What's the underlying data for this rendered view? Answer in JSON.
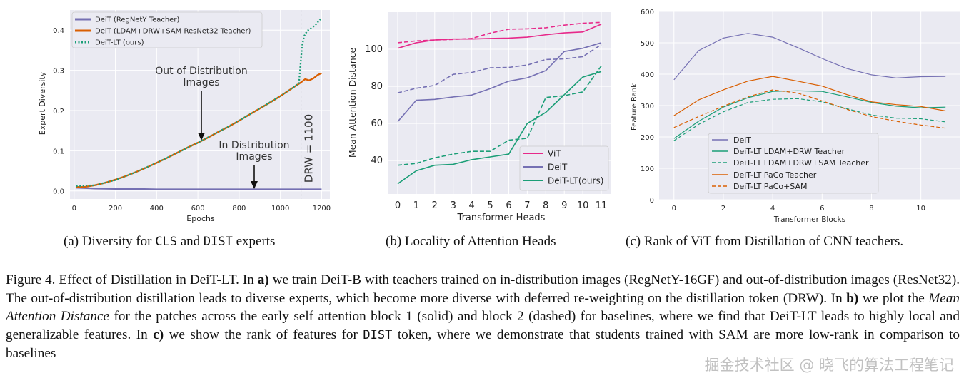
{
  "figure": {
    "subcaption_a": {
      "prefix": "(a) Diversity for ",
      "m1": "CLS",
      "mid": " and ",
      "m2": "DIST",
      "suffix": " experts"
    },
    "subcaption_b": "(b) Locality of Attention Heads",
    "subcaption_c": "(c) Rank of ViT from Distillation of CNN teachers.",
    "caption": {
      "p1": "Figure 4. Effect of Distillation in DeiT-LT. In ",
      "b1": "a)",
      "p2": " we train DeiT-B with teachers trained on in-distribution images (RegNetY-16GF) and out-of-distribution images (ResNet32). The out-of-distribution distillation leads to diverse experts, which become more diverse with deferred re-weighting on the distillation token (DRW). In ",
      "b2": "b)",
      "p3": " we plot the ",
      "i1": "Mean Attention Distance",
      "p4": " for the patches across the early self attention block 1 (solid) and block 2 (dashed) for baselines, where we find that DeiT-LT leads to highly local and generalizable features. In ",
      "b3": "c)",
      "p5": " we show the rank of features for ",
      "m1": "DIST",
      "p6": " token, where we demonstrate that students trained with SAM are more low-rank in comparison to baselines"
    },
    "watermark": "掘金技术社区 @ 晓飞的算法工程笔记"
  },
  "colors": {
    "purple": "#7570b3",
    "orange": "#d95f02",
    "teal": "#1b9e77",
    "pink": "#e7298a",
    "bg": "#eaeaf2"
  },
  "chart_data": [
    {
      "type": "line",
      "id": "a",
      "xlabel": "Epochs",
      "ylabel": "Expert Diversity",
      "xlim": [
        -20,
        1240
      ],
      "ylim": [
        -0.02,
        0.45
      ],
      "xticks": [
        0,
        200,
        400,
        600,
        800,
        1000,
        1200
      ],
      "yticks": [
        0.0,
        0.1,
        0.2,
        0.3,
        0.4
      ],
      "ytick_labels": [
        "0.0",
        "0.1",
        "0.2",
        "0.3",
        "0.4"
      ],
      "legend_position": "top-left",
      "series": [
        {
          "name": "DeiT (RegNetY Teacher)",
          "color": "#7570b3",
          "style": "solid",
          "x": [
            10,
            100,
            200,
            300,
            400,
            500,
            600,
            700,
            800,
            900,
            1000,
            1100,
            1200
          ],
          "y": [
            0.008,
            0.006,
            0.005,
            0.005,
            0.004,
            0.004,
            0.004,
            0.004,
            0.004,
            0.004,
            0.004,
            0.004,
            0.004
          ]
        },
        {
          "name": "DeiT (LDAM+DRW+SAM ResNet32 Teacher)",
          "color": "#d95f02",
          "style": "solid",
          "x": [
            10,
            50,
            100,
            150,
            200,
            250,
            300,
            350,
            400,
            450,
            500,
            550,
            600,
            650,
            700,
            750,
            800,
            850,
            900,
            950,
            1000,
            1050,
            1100,
            1120,
            1140,
            1160,
            1180,
            1200
          ],
          "y": [
            0.01,
            0.01,
            0.014,
            0.02,
            0.028,
            0.037,
            0.047,
            0.058,
            0.07,
            0.082,
            0.095,
            0.108,
            0.12,
            0.133,
            0.147,
            0.16,
            0.175,
            0.19,
            0.205,
            0.22,
            0.236,
            0.253,
            0.27,
            0.278,
            0.275,
            0.28,
            0.288,
            0.293
          ]
        },
        {
          "name": "DeiT-LT (ours)",
          "color": "#1b9e77",
          "style": "dotted",
          "x": [
            10,
            100,
            200,
            300,
            400,
            500,
            600,
            700,
            800,
            900,
            1000,
            1050,
            1090,
            1100,
            1105,
            1115,
            1130,
            1150,
            1170,
            1190,
            1200
          ],
          "y": [
            0.012,
            0.014,
            0.027,
            0.047,
            0.07,
            0.095,
            0.12,
            0.147,
            0.175,
            0.205,
            0.236,
            0.253,
            0.268,
            0.33,
            0.36,
            0.385,
            0.398,
            0.405,
            0.413,
            0.425,
            0.43
          ]
        }
      ],
      "annotations": {
        "drw_label": "DRW = 1100",
        "ood_line1": "Out of Distribution",
        "ood_line2": "Images",
        "ind_line1": "In Distribution",
        "ind_line2": "Images"
      }
    },
    {
      "type": "line",
      "id": "b",
      "xlabel": "Transformer Heads",
      "ylabel": "Mean Attention Distance",
      "xlim": [
        -0.5,
        11.5
      ],
      "ylim": [
        22,
        120
      ],
      "xticks": [
        0,
        1,
        2,
        3,
        4,
        5,
        6,
        7,
        8,
        9,
        10,
        11
      ],
      "yticks": [
        40,
        60,
        80,
        100
      ],
      "legend_position": "bottom-right",
      "legend": [
        "ViT",
        "DeiT",
        "DeiT-LT(ours)"
      ],
      "series": [
        {
          "name": "ViT",
          "color": "#e7298a",
          "style": "solid",
          "x": [
            0,
            1,
            2,
            3,
            4,
            5,
            6,
            7,
            8,
            9,
            10,
            11
          ],
          "y": [
            100.5,
            103.5,
            105,
            105.5,
            105.5,
            105.8,
            106,
            106.5,
            107.8,
            108.8,
            109.3,
            113.5
          ]
        },
        {
          "name": "ViT block 2",
          "color": "#e7298a",
          "style": "dashed",
          "x": [
            0,
            1,
            2,
            3,
            4,
            5,
            6,
            7,
            8,
            9,
            10,
            11
          ],
          "y": [
            103.5,
            104.5,
            105,
            105.3,
            105.8,
            108.7,
            110.8,
            111,
            111.6,
            113,
            114,
            114.5
          ]
        },
        {
          "name": "DeiT",
          "color": "#7570b3",
          "style": "solid",
          "x": [
            0,
            1,
            2,
            3,
            4,
            5,
            6,
            7,
            8,
            9,
            10,
            11
          ],
          "y": [
            61,
            72.5,
            73,
            74.3,
            75.3,
            78.8,
            82.8,
            84.6,
            88.5,
            98.8,
            100.5,
            103.5
          ]
        },
        {
          "name": "DeiT block 2",
          "color": "#7570b3",
          "style": "dashed",
          "x": [
            0,
            1,
            2,
            3,
            4,
            5,
            6,
            7,
            8,
            9,
            10,
            11
          ],
          "y": [
            76.5,
            79,
            80.5,
            86.5,
            87.5,
            90,
            90.2,
            91.5,
            94.5,
            94.8,
            96,
            102.5
          ]
        },
        {
          "name": "DeiT-LT(ours)",
          "color": "#1b9e77",
          "style": "solid",
          "x": [
            0,
            1,
            2,
            3,
            4,
            5,
            6,
            7,
            8,
            9,
            10,
            11
          ],
          "y": [
            27.5,
            34.5,
            37.5,
            38,
            40.5,
            42,
            43.5,
            60,
            66,
            75.5,
            85,
            88
          ]
        },
        {
          "name": "DeiT-LT block 2",
          "color": "#1b9e77",
          "style": "dashed",
          "x": [
            0,
            1,
            2,
            3,
            4,
            5,
            6,
            7,
            8,
            9,
            10,
            11
          ],
          "y": [
            37.5,
            38.5,
            41.5,
            43.5,
            45,
            45,
            51,
            52,
            74,
            75,
            77,
            91
          ]
        }
      ]
    },
    {
      "type": "line",
      "id": "c",
      "xlabel": "Transformer Blocks",
      "ylabel": "Feature Rank",
      "xlim": [
        -0.6,
        11.6
      ],
      "ylim": [
        0,
        600
      ],
      "xticks": [
        0,
        2,
        4,
        6,
        8,
        10
      ],
      "yticks": [
        0,
        100,
        200,
        300,
        400,
        500,
        600
      ],
      "legend_position": "bottom-left",
      "series": [
        {
          "name": "DeiT",
          "color": "#7570b3",
          "style": "solid",
          "x": [
            0,
            1,
            2,
            3,
            4,
            5,
            6,
            7,
            8,
            9,
            10,
            11
          ],
          "y": [
            382,
            475,
            515,
            530,
            518,
            485,
            450,
            418,
            398,
            388,
            392,
            393
          ]
        },
        {
          "name": "DeiT-LT LDAM+DRW Teacher",
          "color": "#1b9e77",
          "style": "solid",
          "x": [
            0,
            1,
            2,
            3,
            4,
            5,
            6,
            7,
            8,
            9,
            10,
            11
          ],
          "y": [
            195,
            250,
            295,
            325,
            345,
            347,
            345,
            328,
            310,
            298,
            293,
            295
          ]
        },
        {
          "name": "DeiT-LT LDAM+DRW+SAM Teacher",
          "color": "#1b9e77",
          "style": "dashed",
          "x": [
            0,
            1,
            2,
            3,
            4,
            5,
            6,
            7,
            8,
            9,
            10,
            11
          ],
          "y": [
            188,
            240,
            280,
            310,
            320,
            322,
            312,
            290,
            270,
            260,
            258,
            248
          ]
        },
        {
          "name": "DeiT-LT PaCo Teacher",
          "color": "#d95f02",
          "style": "solid",
          "x": [
            0,
            1,
            2,
            3,
            4,
            5,
            6,
            7,
            8,
            9,
            10,
            11
          ],
          "y": [
            268,
            318,
            350,
            378,
            393,
            378,
            362,
            335,
            312,
            303,
            297,
            283
          ]
        },
        {
          "name": "DeiT-LT PaCo+SAM",
          "color": "#d95f02",
          "style": "dashed",
          "x": [
            0,
            1,
            2,
            3,
            4,
            5,
            6,
            7,
            8,
            9,
            10,
            11
          ],
          "y": [
            230,
            265,
            298,
            328,
            350,
            340,
            315,
            288,
            265,
            250,
            238,
            228
          ]
        }
      ]
    }
  ]
}
